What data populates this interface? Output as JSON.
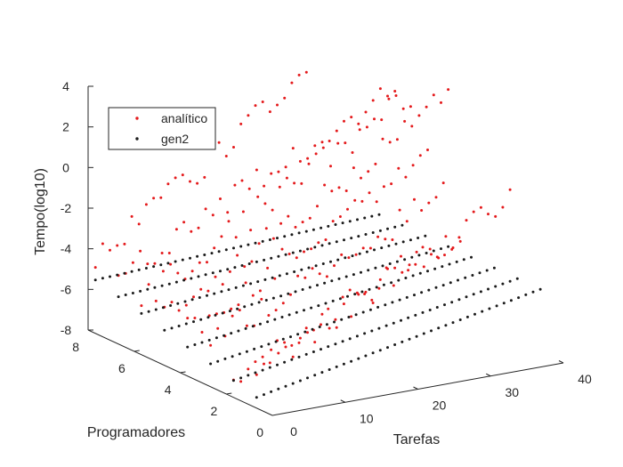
{
  "chart_data": {
    "type": "scatter",
    "view": "3d",
    "xlabel": "Tarefas",
    "ylabel": "Programadores",
    "zlabel": "Tempo(log10)",
    "xlim": [
      0,
      40
    ],
    "ylim": [
      0,
      8
    ],
    "zlim": [
      -8,
      4
    ],
    "x_ticks": [
      "0",
      "10",
      "20",
      "30",
      "40"
    ],
    "y_ticks": [
      "0",
      "2",
      "4",
      "6",
      "8"
    ],
    "z_ticks": [
      "-8",
      "-6",
      "-4",
      "-2",
      "0",
      "2",
      "4"
    ],
    "grid": false,
    "legend_position": "top-left",
    "programadores": [
      1,
      2,
      3,
      4,
      5,
      6,
      7,
      8
    ],
    "tarefas": [
      1,
      2,
      3,
      4,
      5,
      6,
      7,
      8,
      9,
      10,
      11,
      12,
      13,
      14,
      15,
      16,
      17,
      18,
      19,
      20,
      21,
      22,
      23,
      24,
      25,
      26,
      27,
      28,
      29,
      30,
      31,
      32,
      33,
      34,
      35,
      36,
      37,
      38,
      39,
      40
    ],
    "series": [
      {
        "name": "analítico",
        "color": "#e41a1c",
        "marker": "dot",
        "tarefas_max_by_programadores": [
          29,
          39,
          33,
          34,
          40,
          38,
          39,
          30
        ],
        "tempo_log10_ranges_by_programadores": [
          [
            -6.5,
            -1.2
          ],
          [
            -7.0,
            -1.0
          ],
          [
            -6.0,
            -0.8
          ],
          [
            -6.0,
            0.5
          ],
          [
            -6.0,
            2.5
          ],
          [
            -5.5,
            2.2
          ],
          [
            -5.0,
            2.0
          ],
          [
            -4.5,
            2.6
          ]
        ]
      },
      {
        "name": "gen2",
        "color": "#1a1a1a",
        "marker": "dot",
        "tarefas_max": 40,
        "tempo_log10_ranges_by_programadores": [
          [
            -7.7,
            -4.9
          ],
          [
            -7.4,
            -4.9
          ],
          [
            -7.1,
            -4.9
          ],
          [
            -6.8,
            -4.9
          ],
          [
            -6.5,
            -4.9
          ],
          [
            -6.2,
            -4.9
          ],
          [
            -5.9,
            -4.9
          ],
          [
            -5.6,
            -4.9
          ]
        ]
      }
    ]
  }
}
